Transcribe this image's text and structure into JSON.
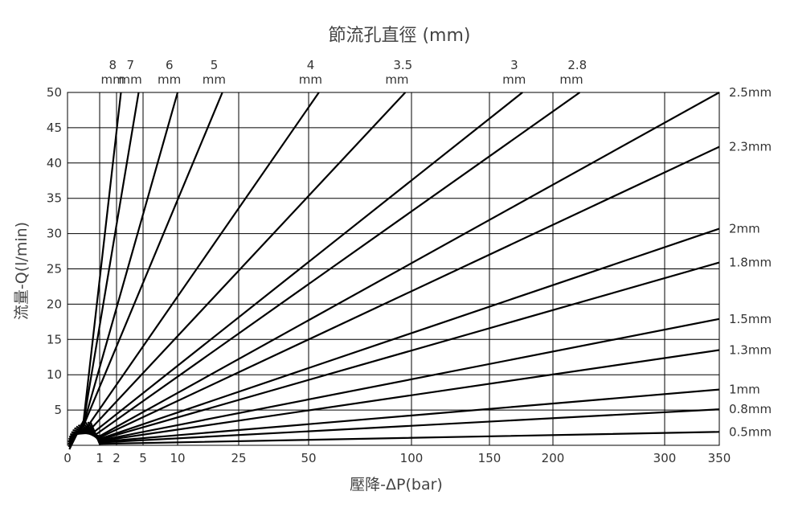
{
  "chart_data": {
    "type": "line",
    "title": "節流孔直徑 (mm)",
    "xlabel": "壓降-ΔP(bar)",
    "ylabel": "流量-Q(l/min)",
    "x_ticks": [
      "0",
      "1",
      "2",
      "5",
      "10",
      "25",
      "50",
      "100",
      "150",
      "200",
      "300",
      "350"
    ],
    "y_ticks": [
      "5",
      "10",
      "15",
      "20",
      "25",
      "30",
      "35",
      "40",
      "45",
      "50"
    ],
    "xlim": [
      0,
      350
    ],
    "ylim": [
      0,
      50
    ],
    "grid": true,
    "series": [
      {
        "name": "8 mm",
        "label_top": [
          "8",
          "mm"
        ],
        "points": [
          [
            0.5,
            3.5
          ],
          [
            2.5,
            50
          ]
        ]
      },
      {
        "name": "7 mm",
        "label_top": [
          "7",
          "mm"
        ],
        "points": [
          [
            0.5,
            3.3
          ],
          [
            4.5,
            50
          ]
        ]
      },
      {
        "name": "6 mm",
        "label_top": [
          "6",
          "mm"
        ],
        "points": [
          [
            0.5,
            3.0
          ],
          [
            10,
            50
          ]
        ]
      },
      {
        "name": "5 mm",
        "label_top": [
          "5",
          "mm"
        ],
        "points": [
          [
            0.5,
            2.8
          ],
          [
            21,
            50
          ]
        ]
      },
      {
        "name": "4 mm",
        "label_top": [
          "4",
          "mm"
        ],
        "points": [
          [
            0.6,
            2.5
          ],
          [
            55,
            50
          ]
        ]
      },
      {
        "name": "3.5 mm",
        "label_top": [
          "3.5",
          "mm"
        ],
        "points": [
          [
            0.7,
            2.2
          ],
          [
            97,
            50
          ]
        ]
      },
      {
        "name": "3 mm",
        "label_top": [
          "3",
          "mm"
        ],
        "points": [
          [
            0.8,
            1.8
          ],
          [
            176,
            50
          ]
        ]
      },
      {
        "name": "2.8 mm",
        "label_top": [
          "2.8",
          "mm"
        ],
        "points": [
          [
            0.9,
            1.6
          ],
          [
            224,
            50
          ]
        ]
      },
      {
        "name": "2.5mm",
        "points": [
          [
            1.0,
            1.3
          ],
          [
            350,
            50
          ]
        ]
      },
      {
        "name": "2.3mm",
        "points": [
          [
            1.0,
            1.1
          ],
          [
            350,
            42.3
          ]
        ]
      },
      {
        "name": "2mm",
        "points": [
          [
            1.0,
            0.9
          ],
          [
            350,
            30.7
          ]
        ]
      },
      {
        "name": "1.8mm",
        "points": [
          [
            1.0,
            0.8
          ],
          [
            350,
            25.9
          ]
        ]
      },
      {
        "name": "1.5mm",
        "points": [
          [
            1.0,
            0.7
          ],
          [
            350,
            17.9
          ]
        ]
      },
      {
        "name": "1.3mm",
        "points": [
          [
            1.0,
            0.6
          ],
          [
            350,
            13.5
          ]
        ]
      },
      {
        "name": "1mm",
        "points": [
          [
            1.0,
            0.5
          ],
          [
            350,
            7.9
          ]
        ]
      },
      {
        "name": "0.8mm",
        "points": [
          [
            1.0,
            0.4
          ],
          [
            350,
            5.1
          ]
        ]
      },
      {
        "name": "0.5mm",
        "points": [
          [
            1.0,
            0.2
          ],
          [
            350,
            1.9
          ]
        ]
      }
    ]
  }
}
